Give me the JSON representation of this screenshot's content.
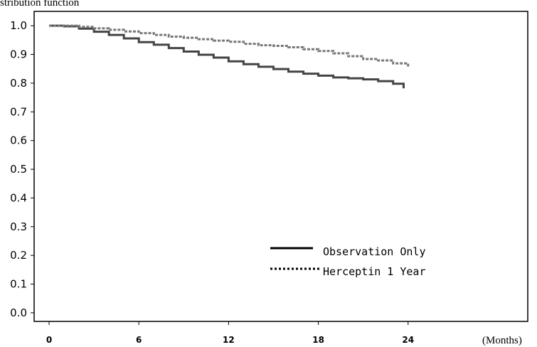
{
  "chart_data": {
    "type": "line",
    "ylabel": "stribution function",
    "xunit": "(Months)",
    "xlim": [
      -1,
      32
    ],
    "ylim": [
      -0.03,
      1.05
    ],
    "xticks": [
      "0",
      "6",
      "12",
      "18",
      "24"
    ],
    "xtick_values": [
      0,
      6,
      12,
      18,
      24
    ],
    "yticks": [
      "0.0",
      "0.1",
      "0.2",
      "0.3",
      "0.4",
      "0.5",
      "0.6",
      "0.7",
      "0.8",
      "0.9",
      "1.0"
    ],
    "ytick_values": [
      0,
      0.1,
      0.2,
      0.3,
      0.4,
      0.5,
      0.6,
      0.7,
      0.8,
      0.9,
      1.0
    ],
    "grid": false,
    "legend_position": "bottom-right",
    "series": [
      {
        "name": "Observation Only",
        "style": "solid",
        "color": "#444444",
        "x": [
          0,
          1,
          2,
          3,
          4,
          5,
          6,
          7,
          8,
          9,
          10,
          11,
          12,
          13,
          14,
          15,
          16,
          17,
          18,
          19,
          20,
          21,
          22,
          23,
          23.7
        ],
        "y": [
          1.0,
          0.998,
          0.99,
          0.979,
          0.968,
          0.956,
          0.943,
          0.934,
          0.922,
          0.91,
          0.899,
          0.889,
          0.876,
          0.866,
          0.857,
          0.849,
          0.84,
          0.833,
          0.826,
          0.82,
          0.817,
          0.813,
          0.807,
          0.798,
          0.782
        ]
      },
      {
        "name": "Herceptin 1 Year",
        "style": "dotted",
        "color": "#777777",
        "x": [
          0,
          1,
          2,
          3,
          4,
          5,
          6,
          7,
          8,
          9,
          10,
          11,
          12,
          13,
          14,
          15,
          16,
          17,
          18,
          19,
          20,
          21,
          22,
          23,
          24
        ],
        "y": [
          1.0,
          1.0,
          0.996,
          0.991,
          0.986,
          0.98,
          0.974,
          0.968,
          0.962,
          0.958,
          0.953,
          0.948,
          0.944,
          0.937,
          0.932,
          0.93,
          0.925,
          0.918,
          0.912,
          0.904,
          0.894,
          0.884,
          0.879,
          0.869,
          0.858
        ]
      }
    ]
  }
}
